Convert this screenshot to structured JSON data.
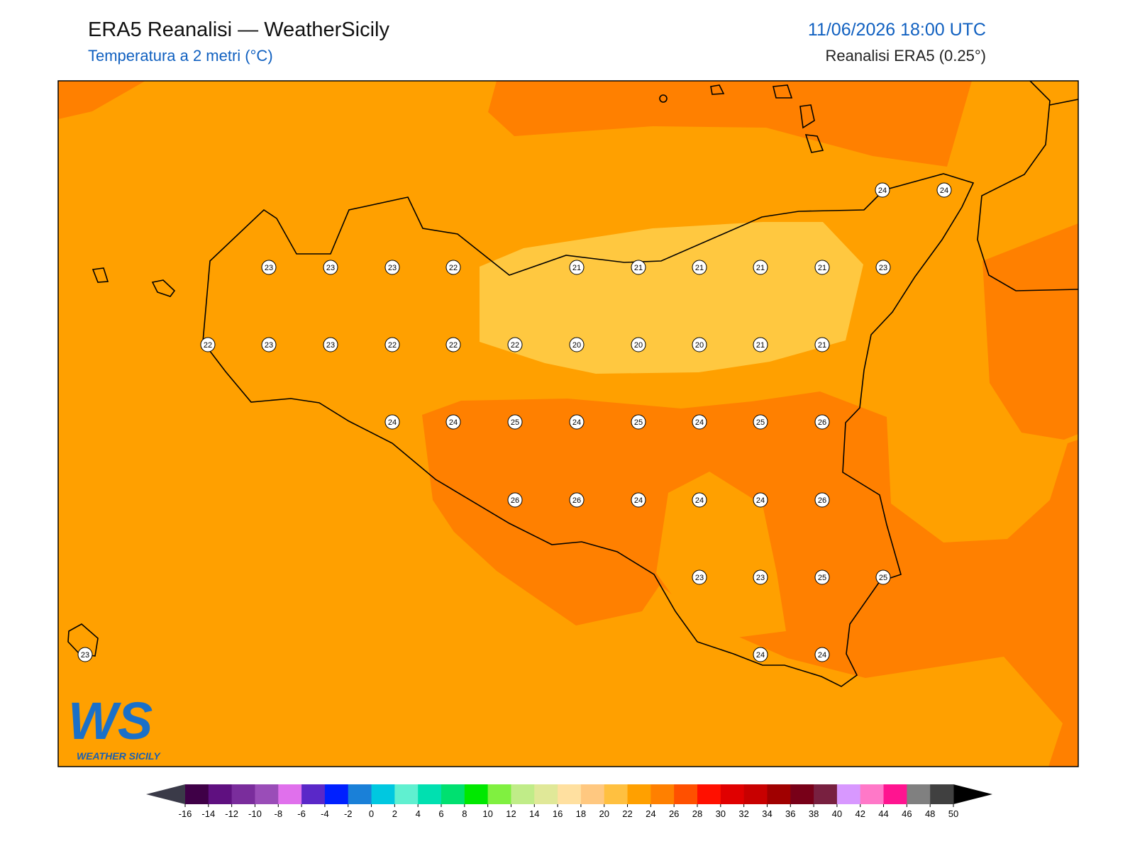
{
  "header": {
    "title": "ERA5 Reanalisi — WeatherSicily",
    "subtitle": "Temperatura a 2 metri (°C)",
    "datetime": "11/06/2026 18:00 UTC",
    "source": "Reanalisi ERA5 (0.25°)"
  },
  "stations": [
    24,
    24,
    23,
    23,
    23,
    22,
    21,
    21,
    21,
    21,
    21,
    23,
    22,
    23,
    23,
    22,
    22,
    22,
    20,
    20,
    20,
    21,
    21,
    24,
    24,
    25,
    24,
    25,
    24,
    25,
    26,
    26,
    26,
    24,
    24,
    24,
    26,
    23,
    23,
    25,
    25,
    23,
    24,
    24
  ],
  "colorbar": {
    "ticks": [
      -16,
      -14,
      -12,
      -10,
      -8,
      -6,
      -4,
      -2,
      0,
      2,
      4,
      6,
      8,
      10,
      12,
      14,
      16,
      18,
      20,
      22,
      24,
      26,
      28,
      30,
      32,
      34,
      36,
      38,
      40,
      42,
      44,
      46,
      48,
      50
    ],
    "colors": [
      "#3f0047",
      "#5f1080",
      "#7a2d9c",
      "#9a4db8",
      "#e070ec",
      "#5a28c8",
      "#0020ff",
      "#1a80d8",
      "#00c8e0",
      "#60f0d0",
      "#00e0b0",
      "#00e070",
      "#00e800",
      "#80f040",
      "#c0ec88",
      "#e0e898",
      "#ffe0a0",
      "#ffc880",
      "#ffc040",
      "#ffa000",
      "#ff8000",
      "#ff5000",
      "#ff1000",
      "#e00000",
      "#c80000",
      "#a00000",
      "#780018",
      "#782040",
      "#d898ff",
      "#ff78c8",
      "#ff1490",
      "#808080",
      "#404040"
    ],
    "under_color": "#3a3a48",
    "over_color": "#000000"
  },
  "logo": {
    "mark": "WS",
    "text": "WEATHER SICILY"
  }
}
